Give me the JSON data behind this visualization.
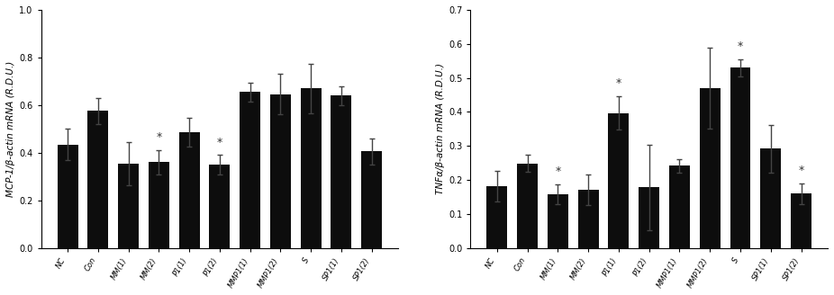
{
  "chart1": {
    "ylabel": "MCP-1/β-actin mRNA (R.D.U.)",
    "ylim": [
      0.0,
      1.0
    ],
    "yticks": [
      0.0,
      0.2,
      0.4,
      0.6,
      0.8,
      1.0
    ],
    "categories": [
      "NC",
      "Con",
      "MM(1)",
      "MM(2)",
      "P1(1)",
      "P1(2)",
      "MMP1(1)",
      "MMP1(2)",
      "S",
      "SP1(1)",
      "SP1(2)"
    ],
    "values": [
      0.435,
      0.575,
      0.355,
      0.36,
      0.485,
      0.35,
      0.655,
      0.645,
      0.67,
      0.64,
      0.405
    ],
    "errors": [
      0.065,
      0.055,
      0.09,
      0.05,
      0.06,
      0.04,
      0.04,
      0.085,
      0.105,
      0.04,
      0.055
    ],
    "stars": [
      false,
      false,
      false,
      true,
      false,
      true,
      false,
      false,
      false,
      false,
      false
    ],
    "bar_color": "#0d0d0d",
    "error_color": "#444444"
  },
  "chart2": {
    "ylabel": "TNFα/β-actin mRNA (R.D.U.)",
    "ylim": [
      0.0,
      0.7
    ],
    "yticks": [
      0.0,
      0.1,
      0.2,
      0.3,
      0.4,
      0.5,
      0.6,
      0.7
    ],
    "categories": [
      "NC",
      "Con",
      "MM(1)",
      "MM(2)",
      "P1(1)",
      "P1(2)",
      "MMP1(1)",
      "MMP1(2)",
      "S",
      "SP1(1)",
      "SP1(2)"
    ],
    "values": [
      0.182,
      0.248,
      0.158,
      0.172,
      0.397,
      0.178,
      0.242,
      0.47,
      0.53,
      0.292,
      0.16
    ],
    "errors": [
      0.045,
      0.025,
      0.03,
      0.045,
      0.048,
      0.125,
      0.02,
      0.12,
      0.025,
      0.07,
      0.03
    ],
    "stars": [
      false,
      false,
      true,
      false,
      true,
      false,
      false,
      false,
      true,
      false,
      true
    ],
    "bar_color": "#0d0d0d",
    "error_color": "#444444"
  },
  "background_color": "#ffffff",
  "figure_width": 9.26,
  "figure_height": 3.28,
  "dpi": 100
}
